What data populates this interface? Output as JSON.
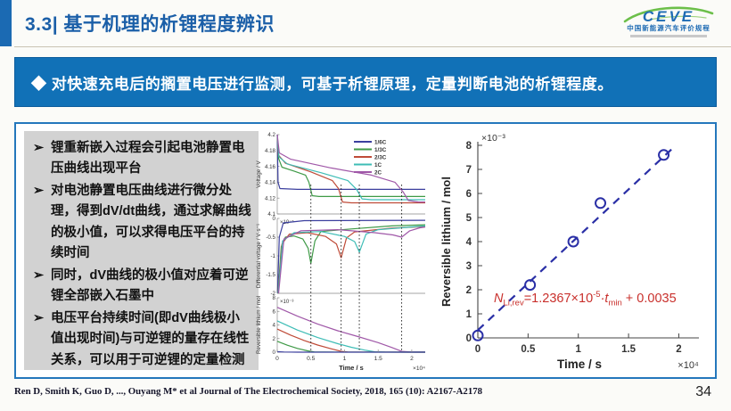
{
  "header": {
    "title": "3.3| 基于机理的析锂程度辨识",
    "logo": {
      "name": "CEVE",
      "tagline": "中国新能源汽车评价规程"
    }
  },
  "banner": {
    "text": "◆ 对快速充电后的搁置电压进行监测，可基于析锂原理，定量判断电池的析锂程度。"
  },
  "bullet_marker": "➢",
  "bullets": [
    "锂重新嵌入过程会引起电池静置电压曲线出现平台",
    "对电池静置电压曲线进行微分处理，得到dV/dt曲线，通过求解曲线的极小值，可以求得电压平台的持续时间",
    "同时，dV曲线的极小值对应着可逆锂全部嵌入石墨中",
    "电压平台持续时间(即dV曲线极小值出现时间)与可逆锂的量存在线性关系，可以用于可逆锂的定量检测"
  ],
  "footer": {
    "citation": "Ren D, Smith K, Guo D, ..., Ouyang M* et al Journal of The Electrochemical Society, 2018, 165 (10): A2167-A2178",
    "page_number": "34"
  },
  "chart_data": [
    {
      "type": "line",
      "xlabel": "Time / s",
      "x_scale": "×10⁴",
      "xticks": [
        0,
        0.5,
        1,
        1.5,
        2
      ],
      "xlim": [
        0,
        2.2
      ],
      "vlines": [
        0.5,
        0.95,
        1.22,
        1.85
      ],
      "legend_position": "top-right",
      "panels": [
        {
          "ylabel": "Voltage / V",
          "y_scale": "",
          "ylim": [
            4.1,
            4.2
          ],
          "yticks": [
            4.2,
            4.18,
            4.16,
            4.14,
            4.12,
            4.1
          ],
          "series": [
            {
              "name": "1/6C",
              "color": "#3b3f9e",
              "points": [
                [
                  0,
                  4.2
                ],
                [
                  0.012,
                  4.14
                ],
                [
                  0.04,
                  4.132
                ],
                [
                  0.3,
                  4.131
                ],
                [
                  2.2,
                  4.131
                ]
              ]
            },
            {
              "name": "1/3C",
              "color": "#3f9a47",
              "points": [
                [
                  0,
                  4.2
                ],
                [
                  0.02,
                  4.17
                ],
                [
                  0.07,
                  4.159
                ],
                [
                  0.25,
                  4.154
                ],
                [
                  0.42,
                  4.149
                ],
                [
                  0.47,
                  4.14
                ],
                [
                  0.52,
                  4.123
                ],
                [
                  0.62,
                  4.122
                ],
                [
                  2.2,
                  4.122
                ]
              ]
            },
            {
              "name": "2/3C",
              "color": "#bf4b38",
              "points": [
                [
                  0,
                  4.2
                ],
                [
                  0.02,
                  4.174
                ],
                [
                  0.12,
                  4.164
                ],
                [
                  0.5,
                  4.153
                ],
                [
                  0.82,
                  4.142
                ],
                [
                  0.91,
                  4.132
                ],
                [
                  0.97,
                  4.115
                ],
                [
                  1.1,
                  4.114
                ],
                [
                  2.2,
                  4.114
                ]
              ]
            },
            {
              "name": "1C",
              "color": "#3ebdb6",
              "points": [
                [
                  0,
                  4.2
                ],
                [
                  0.025,
                  4.172
                ],
                [
                  0.15,
                  4.163
                ],
                [
                  0.65,
                  4.152
                ],
                [
                  1.05,
                  4.142
                ],
                [
                  1.18,
                  4.131
                ],
                [
                  1.26,
                  4.119
                ],
                [
                  1.4,
                  4.118
                ],
                [
                  2.2,
                  4.118
                ]
              ]
            },
            {
              "name": "2C",
              "color": "#a058a8",
              "points": [
                [
                  0,
                  4.2
                ],
                [
                  0.03,
                  4.177
                ],
                [
                  0.2,
                  4.169
                ],
                [
                  0.8,
                  4.158
                ],
                [
                  1.4,
                  4.149
                ],
                [
                  1.75,
                  4.14
                ],
                [
                  1.87,
                  4.128
                ],
                [
                  1.95,
                  4.117
                ],
                [
                  2.1,
                  4.115
                ],
                [
                  2.2,
                  4.115
                ]
              ]
            }
          ]
        },
        {
          "ylabel": "Differential voltage / V·s⁻¹",
          "y_scale": "×10⁻⁵",
          "ylim": [
            -2,
            0
          ],
          "yticks": [
            0,
            -0.5,
            -1,
            -1.5,
            -2
          ],
          "series": [
            {
              "name": "1/6C",
              "color": "#3b3f9e",
              "points": [
                [
                  0.004,
                  -2
                ],
                [
                  0.03,
                  -0.5
                ],
                [
                  0.09,
                  -0.12
                ],
                [
                  0.4,
                  -0.06
                ],
                [
                  2.2,
                  -0.05
                ]
              ]
            },
            {
              "name": "1/3C",
              "color": "#3f9a47",
              "points": [
                [
                  0.01,
                  -2
                ],
                [
                  0.06,
                  -0.75
                ],
                [
                  0.12,
                  -0.5
                ],
                [
                  0.25,
                  -0.47
                ],
                [
                  0.38,
                  -0.55
                ],
                [
                  0.46,
                  -0.8
                ],
                [
                  0.5,
                  -1.2
                ],
                [
                  0.56,
                  -0.6
                ],
                [
                  0.65,
                  -0.35
                ],
                [
                  1.1,
                  -0.28
                ],
                [
                  1.7,
                  -0.2
                ],
                [
                  2.2,
                  -0.17
                ]
              ]
            },
            {
              "name": "2/3C",
              "color": "#bf4b38",
              "points": [
                [
                  0.012,
                  -2
                ],
                [
                  0.07,
                  -0.68
                ],
                [
                  0.18,
                  -0.42
                ],
                [
                  0.45,
                  -0.38
                ],
                [
                  0.72,
                  -0.48
                ],
                [
                  0.88,
                  -0.68
                ],
                [
                  0.95,
                  -1.05
                ],
                [
                  1.03,
                  -0.52
                ],
                [
                  1.15,
                  -0.36
                ],
                [
                  1.7,
                  -0.26
                ],
                [
                  2.2,
                  -0.22
                ]
              ]
            },
            {
              "name": "1C",
              "color": "#3ebdb6",
              "points": [
                [
                  0.015,
                  -2
                ],
                [
                  0.08,
                  -0.6
                ],
                [
                  0.25,
                  -0.38
                ],
                [
                  0.65,
                  -0.35
                ],
                [
                  1.0,
                  -0.48
                ],
                [
                  1.15,
                  -0.62
                ],
                [
                  1.22,
                  -0.9
                ],
                [
                  1.32,
                  -0.42
                ],
                [
                  1.5,
                  -0.3
                ],
                [
                  2.2,
                  -0.2
                ]
              ]
            },
            {
              "name": "2C",
              "color": "#a058a8",
              "points": [
                [
                  0.02,
                  -2
                ],
                [
                  0.1,
                  -0.55
                ],
                [
                  0.35,
                  -0.33
                ],
                [
                  0.9,
                  -0.3
                ],
                [
                  1.45,
                  -0.38
                ],
                [
                  1.72,
                  -0.44
                ],
                [
                  1.85,
                  -0.5
                ],
                [
                  1.97,
                  -0.33
                ],
                [
                  2.12,
                  -0.25
                ],
                [
                  2.2,
                  -0.23
                ]
              ]
            }
          ]
        },
        {
          "ylabel": "Reversible lithium / mol",
          "y_scale": "×10⁻³",
          "ylim": [
            0,
            8
          ],
          "yticks": [
            8,
            6,
            4,
            2,
            0
          ],
          "series": [
            {
              "name": "2C",
              "color": "#a058a8",
              "points": [
                [
                  0,
                  6.6
                ],
                [
                  0.3,
                  5.3
                ],
                [
                  0.6,
                  4.15
                ],
                [
                  0.9,
                  3.15
                ],
                [
                  1.2,
                  2.3
                ],
                [
                  1.5,
                  1.4
                ],
                [
                  1.7,
                  0.7
                ],
                [
                  1.85,
                  0.12
                ],
                [
                  2.0,
                  0.03
                ],
                [
                  2.2,
                  0.02
                ]
              ]
            },
            {
              "name": "1C",
              "color": "#3ebdb6",
              "points": [
                [
                  0,
                  4.6
                ],
                [
                  0.3,
                  3.25
                ],
                [
                  0.6,
                  2.15
                ],
                [
                  0.9,
                  1.25
                ],
                [
                  1.1,
                  0.72
                ],
                [
                  1.3,
                  0.3
                ],
                [
                  1.45,
                  0.05
                ],
                [
                  1.6,
                  0.01
                ],
                [
                  2.2,
                  0
                ]
              ]
            },
            {
              "name": "2/3C",
              "color": "#bf4b38",
              "points": [
                [
                  0,
                  3.4
                ],
                [
                  0.2,
                  2.5
                ],
                [
                  0.4,
                  1.72
                ],
                [
                  0.6,
                  1.05
                ],
                [
                  0.8,
                  0.5
                ],
                [
                  0.95,
                  0.12
                ],
                [
                  1.05,
                  0.02
                ],
                [
                  2.2,
                  0
                ]
              ]
            },
            {
              "name": "1/3C",
              "color": "#3f9a47",
              "points": [
                [
                  0,
                  1.6
                ],
                [
                  0.15,
                  1.02
                ],
                [
                  0.3,
                  0.55
                ],
                [
                  0.45,
                  0.2
                ],
                [
                  0.55,
                  0.04
                ],
                [
                  0.7,
                  0.01
                ],
                [
                  2.2,
                  0
                ]
              ]
            },
            {
              "name": "1/6C",
              "color": "#3b3f9e",
              "points": [
                [
                  0,
                  0.06
                ],
                [
                  0.1,
                  0.02
                ],
                [
                  0.3,
                  0
                ],
                [
                  2.2,
                  0
                ]
              ]
            }
          ]
        }
      ]
    },
    {
      "type": "scatter",
      "xlabel": "Time / s",
      "ylabel": "Reversible lithium / mol",
      "x_scale": "×10⁴",
      "y_scale": "×10⁻³",
      "xlim": [
        0,
        2.2
      ],
      "ylim": [
        0,
        8
      ],
      "xticks": [
        0,
        0.5,
        1,
        1.5,
        2
      ],
      "yticks": [
        0,
        1,
        2,
        3,
        4,
        5,
        6,
        7,
        8
      ],
      "point_color": "#2a2fa6",
      "points": [
        [
          0,
          0.1
        ],
        [
          0.52,
          2.2
        ],
        [
          0.95,
          4.0
        ],
        [
          1.22,
          5.6
        ],
        [
          1.85,
          7.6
        ]
      ],
      "fit_line": {
        "from": [
          0,
          0.32
        ],
        "to": [
          1.97,
          8.0
        ],
        "color": "#2a2fa6",
        "style": "dashed"
      },
      "annotation": {
        "color": "#c9302c",
        "parts": {
          "n": "N",
          "n_sub": "Li,rev",
          "eq": "=1.2367×10",
          "exp": "-5",
          "dot_t": "·t",
          "t_sub": "min",
          "tail": " + 0.0035"
        }
      }
    }
  ]
}
